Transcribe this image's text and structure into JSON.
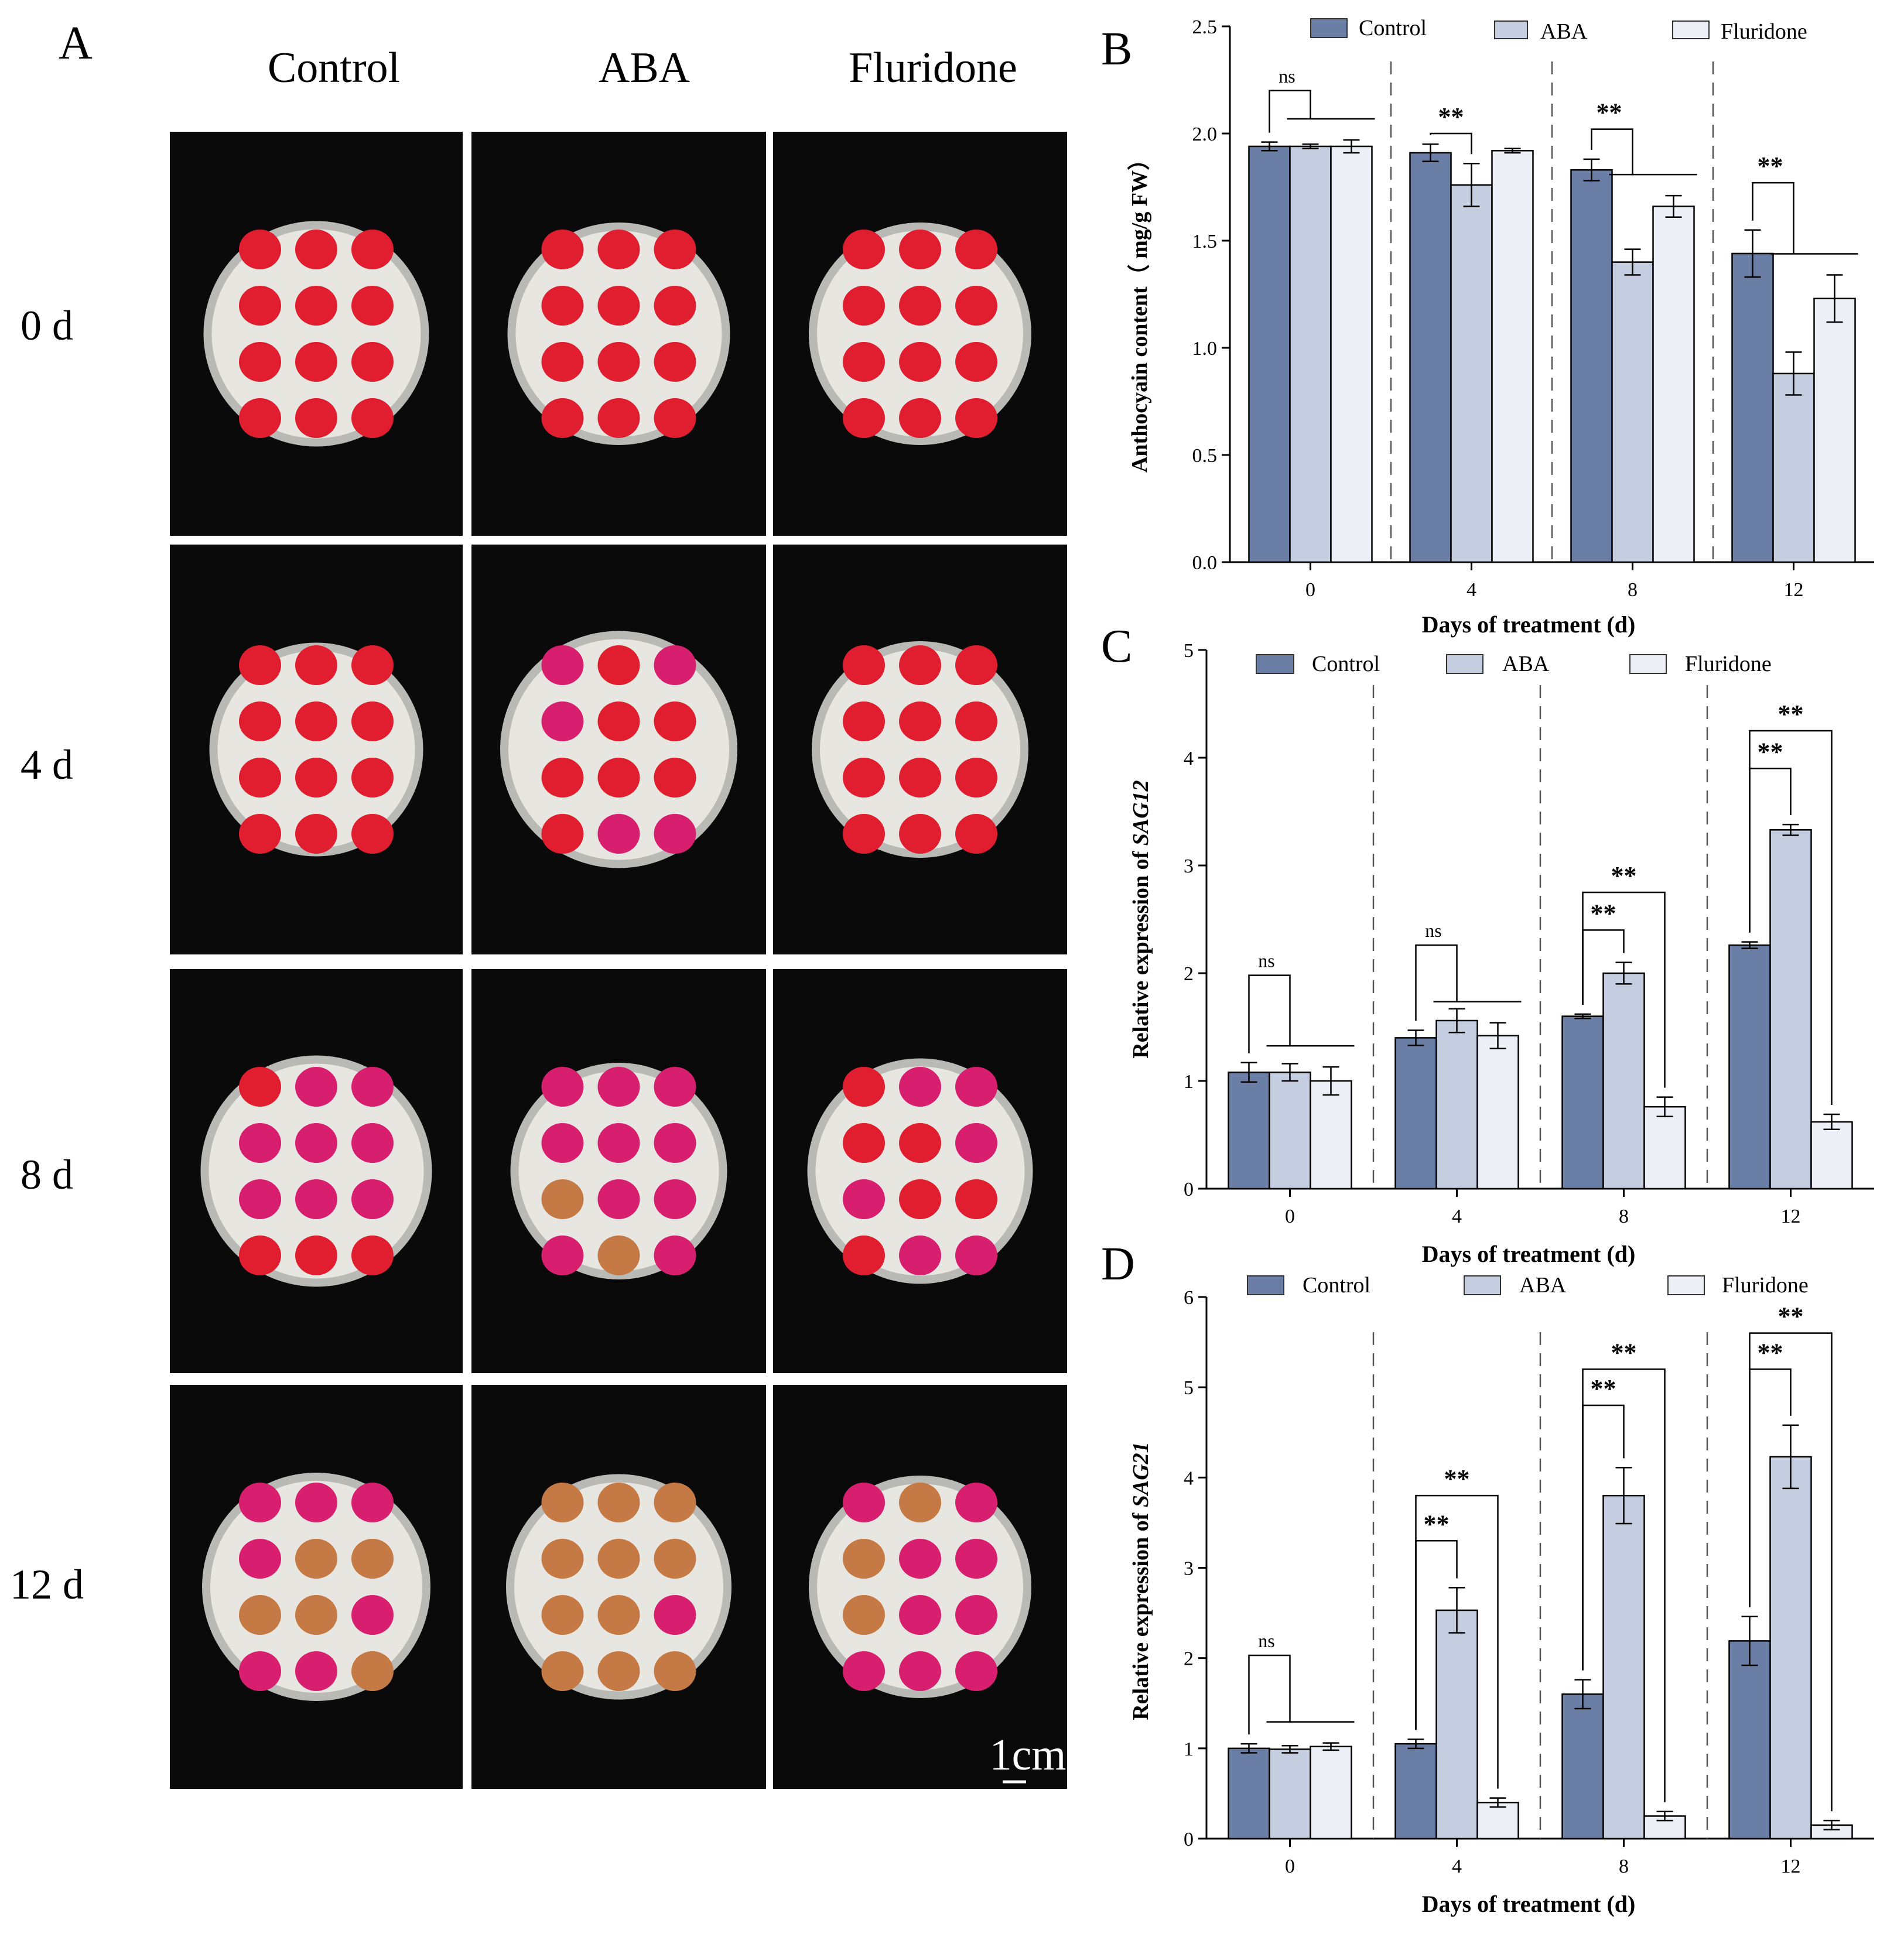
{
  "panels": {
    "A": "A",
    "B": "B",
    "C": "C",
    "D": "D"
  },
  "photo_panel": {
    "columns": [
      "Control",
      "ABA",
      "Fluridone"
    ],
    "rows": [
      "0 d",
      "4 d",
      "8 d",
      "12 d"
    ],
    "scale_bar": "1cm",
    "colors": {
      "background": "#0a0a0a",
      "dish": "#e8e6e0",
      "rim": "#b9b9b5",
      "petal_red": "#e01e30",
      "petal_magenta": "#d81e6e",
      "petal_brown": "#c57a45"
    }
  },
  "legend": [
    "Control",
    "ABA",
    "Fluridone"
  ],
  "colors": {
    "Control": "#6b7fa6",
    "ABA": "#c5cde0",
    "Fluridone": "#eceff5"
  },
  "chart_data": [
    {
      "panel": "B",
      "type": "bar",
      "categories": [
        "0",
        "4",
        "8",
        "12"
      ],
      "series": [
        {
          "name": "Control",
          "values": [
            1.94,
            1.91,
            1.83,
            1.44
          ],
          "errors": [
            0.02,
            0.04,
            0.05,
            0.11
          ]
        },
        {
          "name": "ABA",
          "values": [
            1.94,
            1.76,
            1.4,
            0.88
          ],
          "errors": [
            0.01,
            0.1,
            0.06,
            0.1
          ]
        },
        {
          "name": "Fluridone",
          "values": [
            1.94,
            1.92,
            1.66,
            1.23
          ],
          "errors": [
            0.03,
            0.01,
            0.05,
            0.11
          ]
        }
      ],
      "xlabel": "Days of treatment (d)",
      "ylabel": "Anthocyain content（ mg/g FW）",
      "ylim": [
        0,
        2.5
      ],
      "yticks": [
        "0.0",
        "0.5",
        "1.0",
        "1.5",
        "2.0",
        "2.5"
      ],
      "annotations": [
        "ns",
        "**",
        "**",
        "**"
      ],
      "legend_position": "top"
    },
    {
      "panel": "C",
      "type": "bar",
      "categories": [
        "0",
        "4",
        "8",
        "12"
      ],
      "series": [
        {
          "name": "Control",
          "values": [
            1.08,
            1.4,
            1.6,
            2.26
          ],
          "errors": [
            0.09,
            0.07,
            0.02,
            0.03
          ]
        },
        {
          "name": "ABA",
          "values": [
            1.08,
            1.56,
            2.0,
            3.33
          ],
          "errors": [
            0.08,
            0.11,
            0.1,
            0.05
          ]
        },
        {
          "name": "Fluridone",
          "values": [
            1.0,
            1.42,
            0.76,
            0.62
          ],
          "errors": [
            0.13,
            0.12,
            0.09,
            0.07
          ]
        }
      ],
      "xlabel": "Days of treatment (d)",
      "ylabel_prefix": "Relative expression of ",
      "ylabel_gene": "SAG12",
      "ylim": [
        0,
        5
      ],
      "yticks": [
        "0",
        "1",
        "2",
        "3",
        "4",
        "5"
      ],
      "annotations": [
        "ns",
        "ns",
        "**",
        "**",
        "**",
        "**"
      ],
      "legend_position": "top"
    },
    {
      "panel": "D",
      "type": "bar",
      "categories": [
        "0",
        "4",
        "8",
        "12"
      ],
      "series": [
        {
          "name": "Control",
          "values": [
            1.0,
            1.05,
            1.6,
            2.19
          ],
          "errors": [
            0.05,
            0.05,
            0.16,
            0.27
          ]
        },
        {
          "name": "ABA",
          "values": [
            0.99,
            2.53,
            3.8,
            4.23
          ],
          "errors": [
            0.04,
            0.25,
            0.31,
            0.35
          ]
        },
        {
          "name": "Fluridone",
          "values": [
            1.02,
            0.4,
            0.25,
            0.15
          ],
          "errors": [
            0.04,
            0.05,
            0.05,
            0.05
          ]
        }
      ],
      "xlabel": "Days of treatment (d)",
      "ylabel_prefix": "Relative expression of ",
      "ylabel_gene": "SAG21",
      "ylim": [
        0,
        6
      ],
      "yticks": [
        "0",
        "1",
        "2",
        "3",
        "4",
        "5",
        "6"
      ],
      "annotations": [
        "ns",
        "**",
        "**",
        "**",
        "**",
        "**",
        "**"
      ],
      "legend_position": "top"
    }
  ]
}
